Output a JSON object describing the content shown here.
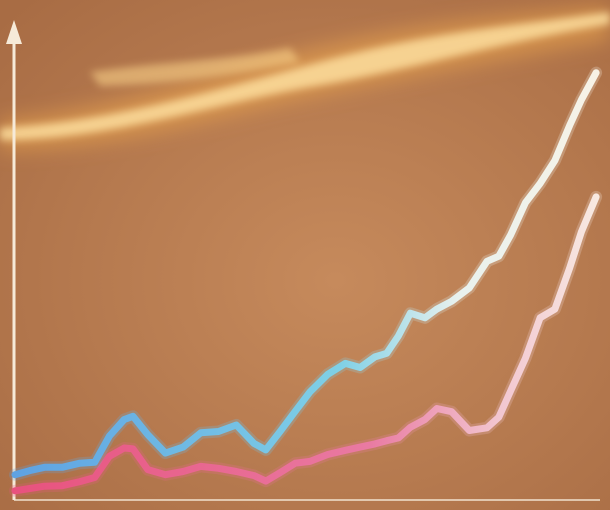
{
  "colors": {
    "background": "#b77a52",
    "background_light": "#c98d5e",
    "glow_core": "#ffe3a0",
    "glow_outer": "#f3b35a",
    "axis": "#f6ead8",
    "series_upper_start": "#5ea2e3",
    "series_upper_end": "#f8f2e6",
    "series_lower_start": "#e8527e",
    "series_lower_end": "#f8ece2"
  },
  "chart_data": {
    "type": "line",
    "title": "",
    "xlabel": "",
    "ylabel": "",
    "grid": false,
    "legend": "none",
    "xlim": [
      0,
      100
    ],
    "ylim": [
      0,
      100
    ],
    "series": [
      {
        "x": [
          0,
          2.5,
          5,
          8,
          11,
          13.5,
          16,
          18.5,
          20,
          22.5,
          25.5,
          28.5,
          31.5,
          34.5,
          37.5,
          40.5,
          42.5,
          45,
          47.5,
          50,
          53,
          56,
          58.5,
          61,
          63,
          65,
          67,
          69.5,
          71.5,
          74,
          77,
          80,
          82,
          84,
          86.5,
          89,
          91.5,
          94,
          96,
          98.5
        ],
        "y": [
          5.5,
          6.4,
          7.1,
          7.1,
          8.0,
          8.2,
          13.9,
          17.5,
          18.2,
          14.2,
          10.2,
          11.5,
          14.6,
          14.9,
          16.3,
          12.3,
          10.9,
          15.0,
          19.3,
          23.5,
          27.3,
          29.7,
          28.8,
          31.1,
          31.9,
          35.7,
          40.6,
          39.6,
          41.5,
          43.2,
          46.1,
          51.9,
          53.0,
          57.6,
          64.6,
          68.8,
          73.8,
          81.4,
          87.0,
          92.9
        ]
      },
      {
        "x": [
          0,
          2.5,
          5,
          8,
          11,
          13.5,
          16,
          18.5,
          20,
          22.5,
          25.5,
          28.5,
          31.5,
          34.5,
          37.5,
          40.5,
          42.5,
          45,
          47.5,
          50,
          53,
          56,
          58.5,
          61,
          63,
          65,
          67,
          69.5,
          71.5,
          74,
          77,
          80,
          82,
          84,
          86.5,
          89,
          91.5,
          94,
          96,
          98.5
        ],
        "y": [
          2.0,
          2.5,
          3.0,
          3.1,
          4.0,
          4.9,
          9.5,
          11.3,
          11.1,
          6.6,
          5.5,
          6.2,
          7.3,
          6.9,
          6.2,
          5.3,
          4.1,
          6.0,
          8.0,
          8.4,
          9.9,
          10.8,
          11.5,
          12.2,
          12.9,
          13.5,
          15.8,
          17.5,
          19.9,
          19.2,
          15.1,
          15.7,
          18.0,
          23.7,
          30.8,
          39.6,
          41.5,
          50.4,
          58.3,
          65.9
        ]
      }
    ]
  }
}
